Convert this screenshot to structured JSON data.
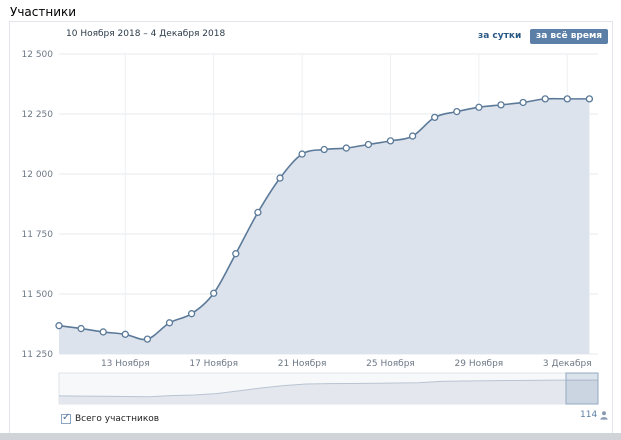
{
  "title": "Участники",
  "date_range": "10 Ноября 2018 – 4 Декабря 2018",
  "period_buttons": {
    "day": "за сутки",
    "all": "за всё время"
  },
  "legend_label": "Всего участников",
  "counter": "114",
  "counter_icon": "person-icon",
  "colors": {
    "line": "#5b7a99",
    "fill": "#dde3ec",
    "active_button": "#5b7fa6",
    "link": "#2a5885"
  },
  "chart_data": {
    "type": "area",
    "x": [
      "10 Ноября",
      "11 Ноября",
      "12 Ноября",
      "13 Ноября",
      "14 Ноября",
      "15 Ноября",
      "16 Ноября",
      "17 Ноября",
      "18 Ноября",
      "19 Ноября",
      "20 Ноября",
      "21 Ноября",
      "22 Ноября",
      "23 Ноября",
      "24 Ноября",
      "25 Ноября",
      "26 Ноября",
      "27 Ноября",
      "28 Ноября",
      "29 Ноября",
      "30 Ноября",
      "1 Декабря",
      "2 Декабря",
      "3 Декабря",
      "4 Декабря"
    ],
    "series": [
      {
        "values": [
          11368,
          11356,
          11342,
          11332,
          11312,
          11380,
          11418,
          11503,
          11668,
          11840,
          11983,
          12083,
          12102,
          12108,
          12123,
          12138,
          12158,
          12236,
          12260,
          12278,
          12288,
          12298,
          12313,
          12313,
          12313
        ]
      }
    ],
    "x_tick_labels": [
      "13 Ноября",
      "17 Ноября",
      "21 Ноября",
      "25 Ноября",
      "29 Ноября",
      "3 Декабря"
    ],
    "y_tick_labels": [
      "11 250",
      "11 500",
      "11 750",
      "12 000",
      "12 250",
      "12 500"
    ],
    "y_ticks": [
      11250,
      11500,
      11750,
      12000,
      12250,
      12500
    ],
    "ylim": [
      11250,
      12500
    ],
    "grid": true
  }
}
